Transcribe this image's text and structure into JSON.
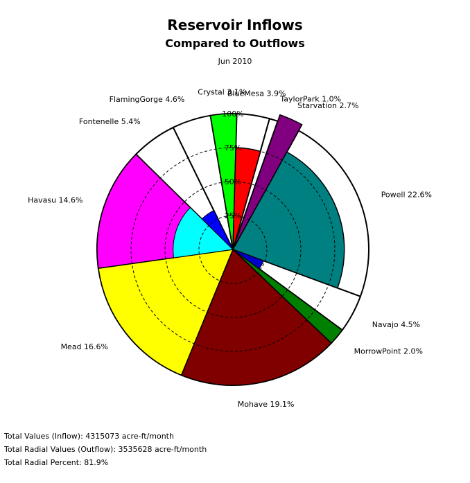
{
  "chart_data": {
    "type": "pie",
    "title": "Reservoir Inflows",
    "subtitle": "Compared to Outflows",
    "date": "Jun 2010",
    "ring_labels": [
      "25%",
      "50%",
      "75%",
      "100%"
    ],
    "slices": [
      {
        "name": "Havasu",
        "label": "Havasu  14.6%",
        "percent": 14.6,
        "radial": 100,
        "color": "#ff00ff"
      },
      {
        "name": "Fontenelle",
        "label": "Fontenelle  5.4%",
        "percent": 5.4,
        "radial": 0,
        "color": "#ffffff"
      },
      {
        "name": "FlamingGorge",
        "label": "FlamingGorge  4.6%",
        "percent": 4.6,
        "radial": 0,
        "color": "#ffffff"
      },
      {
        "name": "Crystal",
        "label": "Crystal  3.1%",
        "percent": 3.1,
        "radial": 100,
        "color": "#00ff00"
      },
      {
        "name": "BlueMesa",
        "label": "BlueMesa  3.9%",
        "percent": 3.9,
        "radial": 75,
        "color": "#ff0000"
      },
      {
        "name": "TaylorPark",
        "label": "TaylorPark  1.0%",
        "percent": 1.0,
        "radial": 0,
        "color": "#ffffff"
      },
      {
        "name": "Starvation",
        "label": "Starvation  2.7%",
        "percent": 2.7,
        "radial": 105,
        "color": "#800080"
      },
      {
        "name": "Powell",
        "label": "Powell  22.6%",
        "percent": 22.6,
        "radial": 82,
        "color": "#008080"
      },
      {
        "name": "Navajo",
        "label": "Navajo  4.5%",
        "percent": 4.5,
        "radial": 0,
        "color": "#ffffff"
      },
      {
        "name": "MorrowPoint",
        "label": "MorrowPoint  2.0%",
        "percent": 2.0,
        "radial": 100,
        "color": "#008000"
      },
      {
        "name": "Mohave",
        "label": "Mohave  19.1%",
        "percent": 19.1,
        "radial": 100,
        "color": "#800000"
      },
      {
        "name": "Mead",
        "label": "Mead  16.6%",
        "percent": 16.6,
        "radial": 100,
        "color": "#ffff00"
      }
    ],
    "inner_wedges": [
      {
        "name": "Havasu",
        "color": "#00ffff",
        "radial": 44
      },
      {
        "name": "Fontenelle",
        "color": "#0000ff",
        "radial": 32
      },
      {
        "name": "Navajo",
        "color": "#0000cc",
        "radial": 24
      }
    ]
  },
  "footer": {
    "total_values": "Total Values (Inflow): 4315073 acre-ft/month",
    "total_radial_values": "Total Radial Values (Outflow): 3535628 acre-ft/month",
    "total_radial_percent": "Total Radial Percent: 81.9%"
  }
}
